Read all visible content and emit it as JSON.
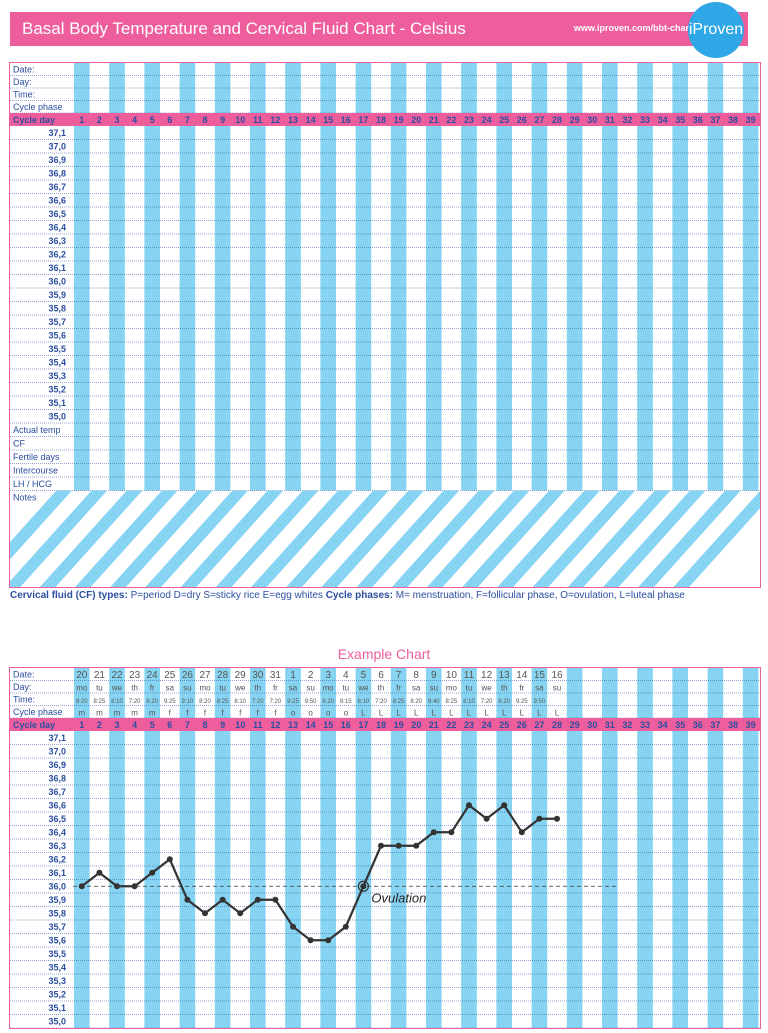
{
  "header": {
    "title": "Basal Body Temperature and Cervical Fluid Chart - Celsius",
    "url": "www.iproven.com/bbt-chart",
    "logo_text": "iProven"
  },
  "colors": {
    "pink": "#ef5e9c",
    "blue": "#87d4f2",
    "navy": "#2b4ea0",
    "line": "#333333"
  },
  "row_labels": {
    "top": [
      "Date:",
      "Day:",
      "Time:",
      "Cycle phase"
    ],
    "cycle_day": "Cycle day",
    "bottom": [
      "Actual temp",
      "CF",
      "Fertile days",
      "Intercourse",
      "LH / HCG",
      "Notes"
    ]
  },
  "cycle_days": [
    "1",
    "2",
    "3",
    "4",
    "5",
    "6",
    "7",
    "8",
    "9",
    "10",
    "11",
    "12",
    "13",
    "14",
    "15",
    "16",
    "17",
    "18",
    "19",
    "20",
    "21",
    "22",
    "23",
    "24",
    "25",
    "26",
    "27",
    "28",
    "29",
    "30",
    "31",
    "32",
    "33",
    "34",
    "35",
    "36",
    "37",
    "38",
    "39"
  ],
  "temps": [
    "37,1",
    "37,0",
    "36,9",
    "36,8",
    "36,7",
    "36,6",
    "36,5",
    "36,4",
    "36,3",
    "36,2",
    "36,1",
    "36,0",
    "35,9",
    "35,8",
    "35,7",
    "35,6",
    "35,5",
    "35,4",
    "35,3",
    "35,2",
    "35,1",
    "35,0"
  ],
  "legend": {
    "cf_label": "Cervical fluid (CF) types:",
    "cf_text": " P=period  D=dry  S=sticky rice  E=egg whites  ",
    "phase_label": "Cycle phases:",
    "phase_text": " M= menstruation, F=follicular phase, O=ovulation, L=luteal phase"
  },
  "example_title": "Example Chart",
  "ovulation_label": "Ovulation",
  "example_rows": {
    "dates": [
      "20",
      "21",
      "22",
      "23",
      "24",
      "25",
      "26",
      "27",
      "28",
      "29",
      "30",
      "31",
      "1",
      "2",
      "3",
      "4",
      "5",
      "6",
      "7",
      "8",
      "9",
      "10",
      "11",
      "12",
      "13",
      "14",
      "15",
      "16"
    ],
    "days": [
      "mo",
      "tu",
      "we",
      "th",
      "fr",
      "sa",
      "su",
      "mo",
      "tu",
      "we",
      "th",
      "fr",
      "sa",
      "su",
      "mo",
      "tu",
      "we",
      "th",
      "fr",
      "sa",
      "su",
      "mo",
      "tu",
      "we",
      "th",
      "fr",
      "sa",
      "su"
    ],
    "times": [
      "8:20",
      "8:25",
      "8:10",
      "7:20",
      "8:20",
      "9:25",
      "9:10",
      "8:20",
      "8:25",
      "8:10",
      "7:20",
      "7:20",
      "9:25",
      "9:50",
      "8:20",
      "8:15",
      "8:10",
      "7:20",
      "8:25",
      "8:20",
      "9:40",
      "8:25",
      "8:10",
      "7:20",
      "8:20",
      "9:25",
      "9:50",
      ""
    ],
    "phases": [
      "m",
      "m",
      "m",
      "m",
      "m",
      "f",
      "f",
      "f",
      "f",
      "f",
      "f",
      "f",
      "o",
      "o",
      "o",
      "o",
      "L",
      "L",
      "L",
      "L",
      "L",
      "L",
      "L",
      "L",
      "L",
      "L",
      "L",
      "L"
    ]
  },
  "chart_data": {
    "type": "line",
    "title": "Example Chart",
    "xlabel": "Cycle day",
    "ylabel": "",
    "ylim": [
      35.0,
      37.1
    ],
    "x": [
      1,
      2,
      3,
      4,
      5,
      6,
      7,
      8,
      9,
      10,
      11,
      12,
      13,
      14,
      15,
      16,
      17,
      18,
      19,
      20,
      21,
      22,
      23,
      24,
      25,
      26,
      27,
      28
    ],
    "series": [
      {
        "values": [
          36.0,
          36.1,
          36.0,
          36.0,
          36.1,
          36.2,
          35.9,
          35.8,
          35.9,
          35.8,
          35.9,
          35.9,
          35.7,
          35.6,
          35.6,
          35.7,
          36.0,
          36.3,
          36.3,
          36.3,
          36.4,
          36.4,
          36.6,
          36.5,
          36.6,
          36.4,
          36.5,
          36.5
        ]
      }
    ],
    "coverline": 36.0,
    "ovulation_day": 17
  }
}
